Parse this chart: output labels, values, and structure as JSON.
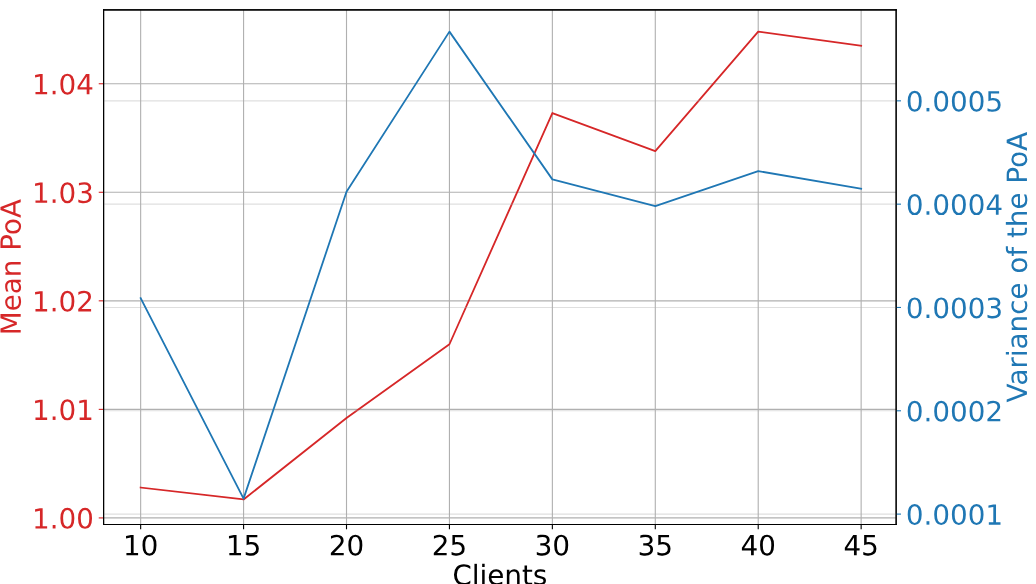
{
  "chart_data": {
    "type": "line",
    "xlabel": "Clients",
    "ylabel": "Mean PoA",
    "y2label": "Variance of the PoA",
    "x": [
      10,
      15,
      20,
      25,
      30,
      35,
      40,
      45
    ],
    "series": [
      {
        "color": "#d62728",
        "values": [
          1.0028,
          1.0017,
          1.0092,
          1.016,
          1.0373,
          1.0338,
          1.0448,
          1.0435
        ]
      },
      {
        "color": "#1f77b4",
        "axis": "y2",
        "values": [
          0.000309,
          0.000115,
          0.000412,
          0.000567,
          0.000424,
          0.000398,
          0.000432,
          0.000415
        ]
      }
    ],
    "xlim": [
      8.2,
      46.7
    ],
    "xticks": [
      10,
      15,
      20,
      25,
      30,
      35,
      40,
      45
    ],
    "ylim": [
      0.9994,
      1.0468
    ],
    "yticks": [
      {
        "value": 1.0,
        "label": "1.00"
      },
      {
        "value": 1.01,
        "label": "1.01"
      },
      {
        "value": 1.02,
        "label": "1.02"
      },
      {
        "value": 1.03,
        "label": "1.03"
      },
      {
        "value": 1.04,
        "label": "1.04"
      }
    ],
    "y2lim": [
      9e-05,
      0.000588
    ],
    "y2ticks": [
      0.0001,
      0.0002,
      0.0003,
      0.0004,
      0.0005
    ],
    "grid": true,
    "marker": "none",
    "line_style": "solid"
  }
}
